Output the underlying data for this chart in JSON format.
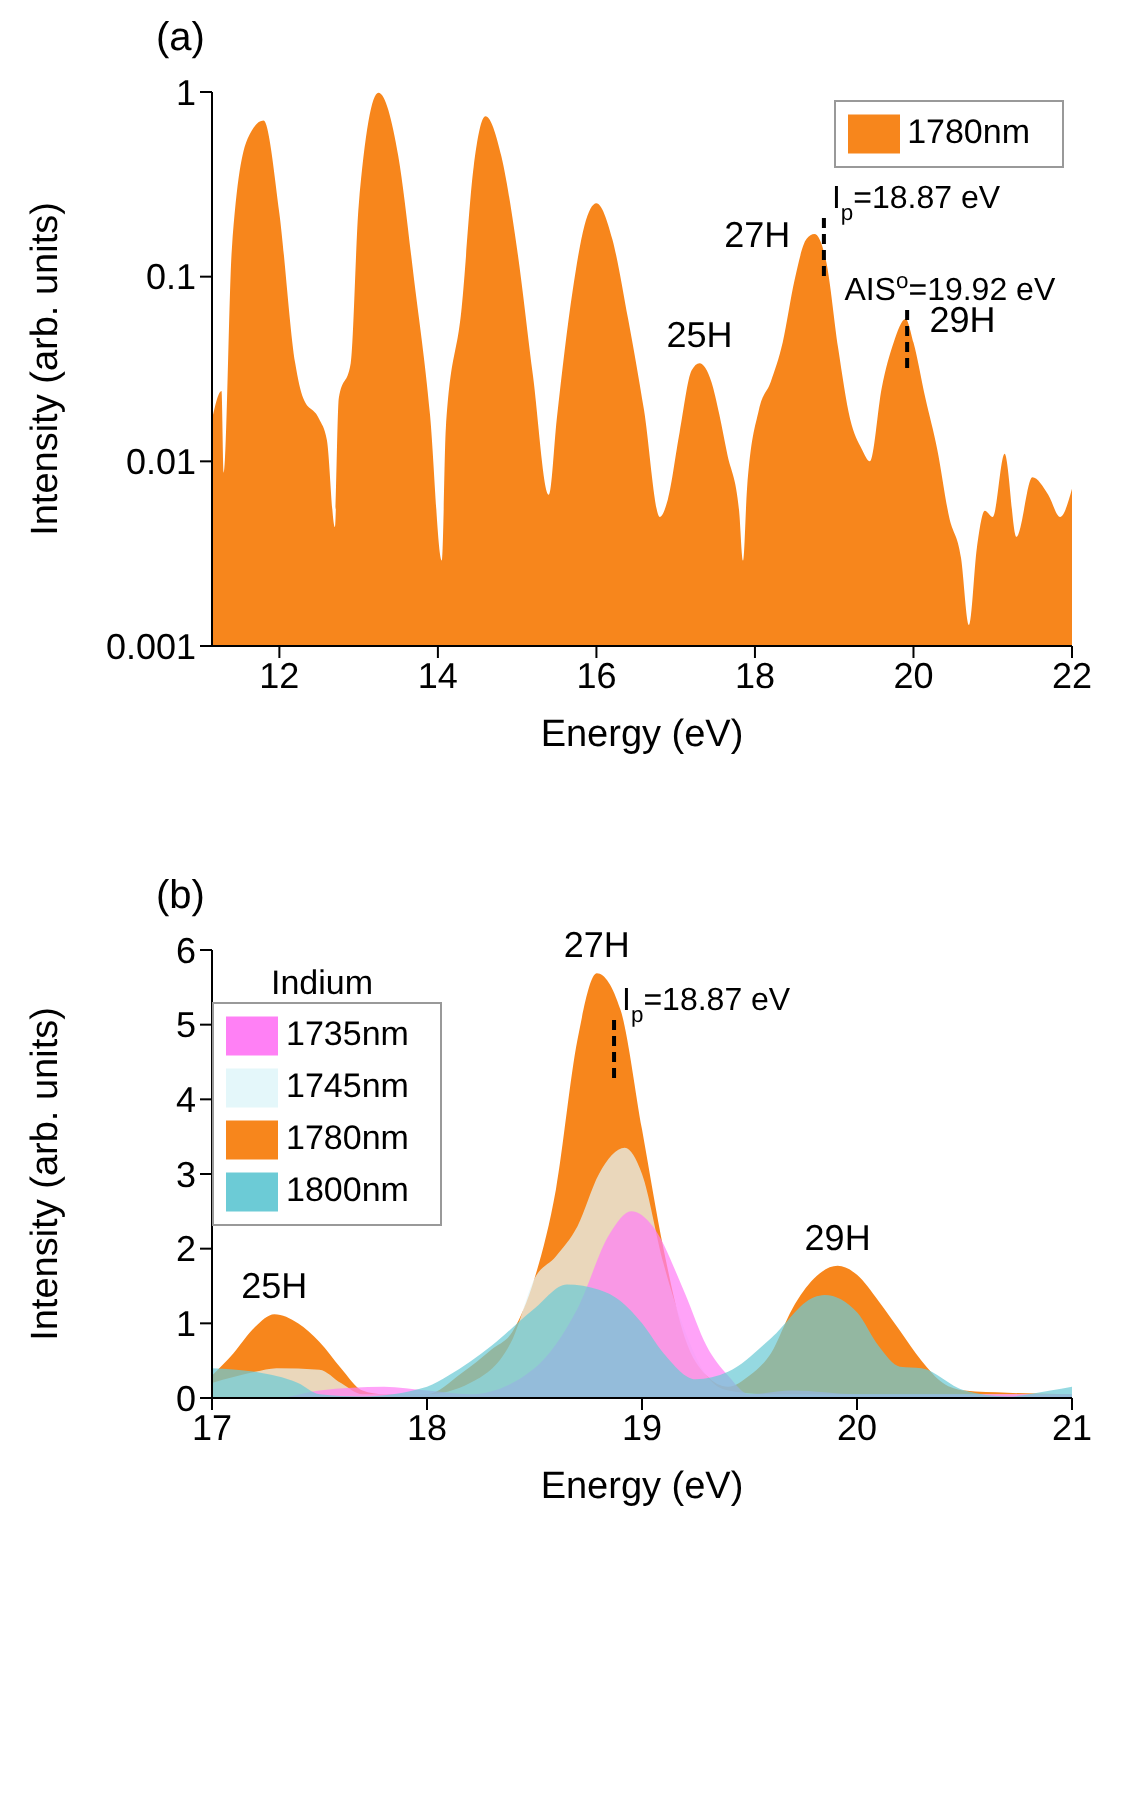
{
  "chart_data": [
    {
      "type": "area",
      "title": "(a)",
      "xlabel": "Energy (eV)",
      "ylabel": "Intensity (arb. units)",
      "log": true,
      "legend": "top right",
      "xlim": [
        11.15,
        22
      ],
      "xticks": [
        12,
        14,
        16,
        18,
        20,
        22
      ],
      "ylim": [
        0.001,
        1
      ],
      "yticks": [
        0.001,
        0.01,
        0.1,
        1
      ],
      "series": [
        {
          "name": "1780nm",
          "color": "#f7861c",
          "x": [
            11.15,
            11.27,
            11.3,
            11.4,
            11.6,
            11.8,
            12.0,
            12.2,
            12.3,
            12.5,
            12.6,
            12.7,
            12.75,
            12.9,
            13.0,
            13.25,
            13.5,
            13.7,
            13.9,
            14.05,
            14.1,
            14.3,
            14.45,
            14.6,
            14.8,
            15.0,
            15.2,
            15.4,
            15.5,
            15.7,
            15.85,
            16.0,
            16.2,
            16.4,
            16.6,
            16.8,
            16.9,
            17.05,
            17.2,
            17.3,
            17.45,
            17.55,
            17.65,
            17.8,
            17.85,
            17.9,
            18.05,
            18.2,
            18.35,
            18.5,
            18.65,
            18.75,
            18.9,
            19.05,
            19.2,
            19.35,
            19.45,
            19.6,
            19.75,
            19.9,
            20.0,
            20.15,
            20.3,
            20.45,
            20.6,
            20.7,
            20.8,
            20.9,
            21.0,
            21.15,
            21.3,
            21.5,
            21.7,
            21.85,
            22.0
          ],
          "values": [
            0.0166,
            0.024,
            0.0087,
            0.14,
            0.56,
            0.7,
            0.22,
            0.034,
            0.022,
            0.017,
            0.013,
            0.0044,
            0.022,
            0.034,
            0.24,
            0.99,
            0.45,
            0.096,
            0.018,
            0.0029,
            0.015,
            0.068,
            0.39,
            0.74,
            0.45,
            0.14,
            0.029,
            0.0066,
            0.017,
            0.084,
            0.19,
            0.25,
            0.16,
            0.059,
            0.019,
            0.005,
            0.0062,
            0.0144,
            0.031,
            0.034,
            0.027,
            0.018,
            0.011,
            0.0054,
            0.0029,
            0.0071,
            0.019,
            0.027,
            0.044,
            0.096,
            0.16,
            0.17,
            0.12,
            0.041,
            0.017,
            0.0116,
            0.01,
            0.025,
            0.044,
            0.059,
            0.044,
            0.022,
            0.0116,
            0.005,
            0.003,
            0.0013,
            0.0034,
            0.0054,
            0.005,
            0.011,
            0.0039,
            0.0082,
            0.0066,
            0.005,
            0.0071
          ]
        }
      ],
      "ref_lines": [
        {
          "axis": "x",
          "value": 18.87,
          "label": "I$_{p}$=18.87 eV",
          "line_style": "dashed",
          "color": "#000000"
        },
        {
          "axis": "x",
          "value": 19.92,
          "label": "AIS$^{o}$=19.92 eV",
          "line_style": "dashed",
          "color": "#000000"
        }
      ],
      "annotations": [
        {
          "text": "25H",
          "x": 17.3,
          "y": 0.034
        },
        {
          "text": "27H",
          "x": 18.75,
          "y": 0.17
        },
        {
          "text": "29H",
          "x": 19.9,
          "y": 0.059
        }
      ]
    },
    {
      "type": "area",
      "title": "(b)",
      "xlabel": "Energy (eV)",
      "ylabel": "Intensity (arb. units)",
      "legend": "top left",
      "legend_title": "Indium",
      "xlim": [
        17,
        21
      ],
      "xticks": [
        17,
        18,
        19,
        20,
        21
      ],
      "ylim": [
        0,
        6
      ],
      "yticks": [
        0,
        1,
        2,
        3,
        4,
        5,
        6
      ],
      "series": [
        {
          "name": "1780nm",
          "color": "#f7861c",
          "x": [
            17.0,
            17.1,
            17.2,
            17.29,
            17.4,
            17.5,
            17.6,
            17.7,
            17.8,
            18.0,
            18.16,
            18.3,
            18.4,
            18.5,
            18.6,
            18.7,
            18.79,
            18.9,
            19.0,
            19.1,
            19.2,
            19.3,
            19.4,
            19.5,
            19.6,
            19.7,
            19.8,
            19.91,
            20.0,
            20.1,
            20.2,
            20.3,
            20.4,
            20.5,
            20.7,
            21.0
          ],
          "values": [
            0.3,
            0.6,
            0.95,
            1.12,
            1.0,
            0.75,
            0.4,
            0.1,
            0.05,
            0.05,
            0.33,
            0.65,
            0.9,
            1.6,
            2.8,
            4.8,
            5.69,
            5.2,
            3.6,
            2.0,
            0.8,
            0.3,
            0.15,
            0.3,
            0.6,
            1.2,
            1.6,
            1.77,
            1.65,
            1.3,
            0.9,
            0.5,
            0.2,
            0.1,
            0.07,
            0.05
          ]
        },
        {
          "name": "1745nm",
          "color": "#e4f7fa",
          "x": [
            17.0,
            17.2,
            17.3,
            17.5,
            17.6,
            17.7,
            18.0,
            18.2,
            18.4,
            18.5,
            18.6,
            18.7,
            18.8,
            18.92,
            19.0,
            19.1,
            19.2,
            19.3,
            19.4,
            19.6,
            20.0,
            21.0
          ],
          "values": [
            0.2,
            0.35,
            0.4,
            0.38,
            0.2,
            0.05,
            0.05,
            0.2,
            0.8,
            1.6,
            1.9,
            2.3,
            3.0,
            3.35,
            3.0,
            1.8,
            0.9,
            0.3,
            0.1,
            0.05,
            0.05,
            0.05
          ]
        },
        {
          "name": "1735nm",
          "color": "#ff80f5",
          "x": [
            17.0,
            17.3,
            17.5,
            17.8,
            18.0,
            18.2,
            18.5,
            18.7,
            18.85,
            18.95,
            19.05,
            19.2,
            19.3,
            19.4,
            19.5,
            19.7,
            20.0,
            20.5,
            21.0
          ],
          "values": [
            0,
            0,
            0.1,
            0.15,
            0.1,
            0.05,
            0.4,
            1.2,
            2.2,
            2.5,
            2.3,
            1.4,
            0.7,
            0.3,
            0.05,
            0.1,
            0.05,
            0.05,
            0.05
          ]
        },
        {
          "name": "1800nm",
          "color": "#6ccbd6",
          "x": [
            17.0,
            17.2,
            17.4,
            17.5,
            17.7,
            18.0,
            18.1,
            18.3,
            18.5,
            18.65,
            18.8,
            18.9,
            19.0,
            19.1,
            19.25,
            19.4,
            19.6,
            19.8,
            19.85,
            20.0,
            20.1,
            20.2,
            20.3,
            20.5,
            20.7,
            20.9,
            21.0
          ],
          "values": [
            0.4,
            0.35,
            0.2,
            0.05,
            0.02,
            0.15,
            0.3,
            0.7,
            1.2,
            1.52,
            1.45,
            1.3,
            1.0,
            0.6,
            0.25,
            0.35,
            0.8,
            1.35,
            1.38,
            1.15,
            0.7,
            0.42,
            0.4,
            0.1,
            0.02,
            0.1,
            0.15
          ]
        }
      ],
      "ref_lines": [
        {
          "axis": "x",
          "value": 18.87,
          "label": "I$_{p}$=18.87 eV",
          "line_style": "dashed",
          "color": "#000000"
        }
      ],
      "annotations": [
        {
          "text": "25H",
          "x": 17.29,
          "y": 1.12
        },
        {
          "text": "27H",
          "x": 18.79,
          "y": 5.69
        },
        {
          "text": "29H",
          "x": 19.91,
          "y": 1.77
        }
      ]
    }
  ]
}
